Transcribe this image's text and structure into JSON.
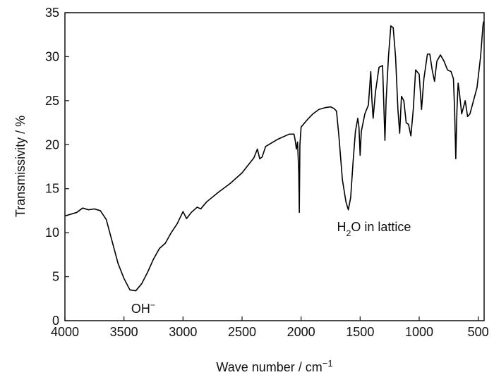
{
  "chart_data": {
    "type": "line",
    "xlabel": [
      {
        "text": "Wave number / cm"
      },
      {
        "text": "−1",
        "shift": "sup"
      }
    ],
    "ylabel": "Transmissivity / %",
    "annotations": [
      [
        {
          "text": "OH"
        },
        {
          "text": "−",
          "shift": "sup"
        }
      ],
      [
        {
          "text": "H"
        },
        {
          "text": "2",
          "shift": "sub"
        },
        {
          "text": "O in lattice"
        }
      ]
    ],
    "color": "#000000",
    "x": [
      4000,
      3900,
      3850,
      3800,
      3750,
      3700,
      3650,
      3600,
      3550,
      3500,
      3450,
      3400,
      3350,
      3300,
      3250,
      3200,
      3150,
      3100,
      3050,
      3000,
      2970,
      2930,
      2880,
      2850,
      2800,
      2700,
      2600,
      2500,
      2400,
      2370,
      2350,
      2330,
      2300,
      2200,
      2100,
      2060,
      2050,
      2040,
      2030,
      2020,
      2015,
      2010,
      2000,
      1950,
      1900,
      1850,
      1800,
      1750,
      1720,
      1700,
      1680,
      1650,
      1620,
      1600,
      1580,
      1560,
      1540,
      1520,
      1510,
      1500,
      1490,
      1460,
      1430,
      1410,
      1400,
      1390,
      1370,
      1340,
      1310,
      1290,
      1280,
      1260,
      1240,
      1220,
      1200,
      1180,
      1165,
      1150,
      1130,
      1110,
      1090,
      1070,
      1050,
      1030,
      1000,
      980,
      960,
      930,
      910,
      890,
      870,
      850,
      820,
      790,
      760,
      730,
      710,
      700,
      690,
      680,
      670,
      660,
      640,
      610,
      590,
      570,
      540,
      510,
      480,
      460,
      455
    ],
    "values": [
      11.9,
      12.3,
      12.8,
      12.6,
      12.7,
      12.5,
      11.5,
      9,
      6.5,
      4.8,
      3.5,
      3.4,
      4.2,
      5.5,
      7,
      8.2,
      8.8,
      10,
      11,
      12.4,
      11.6,
      12.3,
      12.9,
      12.7,
      13.5,
      14.6,
      15.6,
      16.8,
      18.5,
      19.5,
      18.4,
      18.6,
      19.8,
      20.6,
      21.2,
      21.2,
      20.5,
      19.5,
      20.3,
      17,
      12.3,
      20,
      22,
      22.8,
      23.5,
      24,
      24.2,
      24.3,
      24.1,
      23.8,
      21,
      16,
      13.5,
      12.6,
      14,
      18,
      21.5,
      23,
      22,
      18.8,
      21.5,
      23.5,
      24.5,
      28.3,
      25,
      23,
      26,
      28.8,
      29,
      20.5,
      25,
      30,
      33.5,
      33.3,
      30,
      24,
      21.3,
      25.5,
      25,
      22.5,
      22.3,
      21,
      24,
      28.5,
      28,
      24,
      27.5,
      30.3,
      30.3,
      28.5,
      27.2,
      29.5,
      30.2,
      29.5,
      28.5,
      28.3,
      27.5,
      24,
      18.4,
      24,
      27,
      26,
      23.5,
      25,
      23.2,
      23.5,
      25,
      26.5,
      30,
      33.5,
      34
    ],
    "xlim": [
      4000,
      450
    ],
    "xticks": [
      4000,
      3500,
      3000,
      2500,
      2000,
      1500,
      1000,
      500
    ],
    "ylim": [
      0,
      35
    ],
    "yticks": [
      0,
      5,
      10,
      15,
      20,
      25,
      30,
      35
    ]
  }
}
